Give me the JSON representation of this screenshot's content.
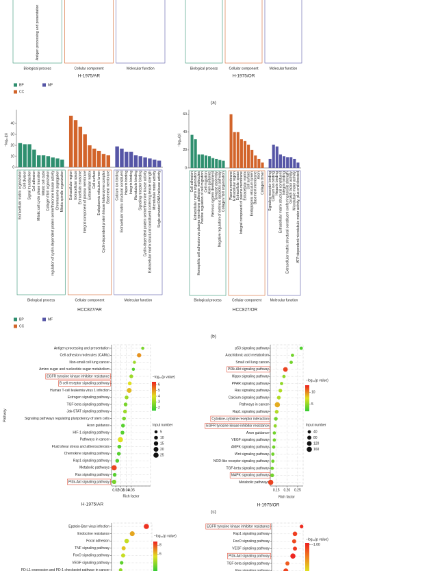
{
  "panel_labels": [
    "(a)",
    "(b)",
    "(c)"
  ],
  "chart_data": [
    {
      "type": "bar",
      "title": "H-1975/AR",
      "legend": "bottom-left",
      "groups": [
        {
          "name": "BP",
          "label": "Biological process",
          "color": "#2f8f6f",
          "categories": [
            "Antigen processing and presentation"
          ]
        },
        {
          "name": "CC",
          "label": "Cellular component",
          "color": "#d2642a",
          "categories": []
        },
        {
          "name": "MF",
          "label": "Molecular function",
          "color": "#5656a6",
          "categories": []
        }
      ]
    },
    {
      "type": "bar",
      "title": "H-1975/OR",
      "groups": [
        {
          "label": "Biological process",
          "color": "#2f8f6f",
          "categories": []
        },
        {
          "label": "Cellular component",
          "color": "#d2642a",
          "categories": []
        },
        {
          "label": "Molecular function",
          "color": "#5656a6",
          "categories": []
        }
      ]
    },
    {
      "type": "bar",
      "title": "HCC827/AR",
      "ylabel": "−log₁₀(p)",
      "legend": "bottom-left",
      "ylim": [
        0,
        50
      ],
      "yticks": [
        0,
        10,
        20,
        30,
        40
      ],
      "groups": [
        {
          "name": "BP",
          "label": "Biological process",
          "color": "#2f8f6f",
          "categories": [
            "Extracellular matrix organization",
            "Cell division",
            "Signal transduction",
            "Cell adhesion",
            "Mitotic cell cycle phase transition",
            "Mitotic cell cycle",
            "Collagen fibril organization",
            "regulation of cyclin-dependent protein serine/threonine kinase activity",
            "Chromosome segregation",
            "Mitotic spindle organization"
          ],
          "values": [
            22,
            21,
            21,
            16,
            11,
            11,
            10,
            9,
            8,
            7
          ]
        },
        {
          "name": "CC",
          "label": "Cellular component",
          "color": "#d2642a",
          "categories": [
            "Extracellular region",
            "Extracellular space",
            "Extracellular exosome",
            "Integral component of plasma membrane",
            "Extracellular matrix",
            "Cell surface",
            "Endoplasmic reticulum lumen",
            "Cyclin-dependent protein kinase holoenzyme complex",
            "Basement membrane"
          ],
          "values": [
            47,
            43,
            37,
            30,
            20,
            17,
            15,
            12,
            11
          ]
        },
        {
          "name": "MF",
          "label": "Molecular function",
          "color": "#5656a6",
          "categories": [
            "Calcium ion binding",
            "Extracellular matrix structural constituent",
            "Heparin binding",
            "Integrin binding",
            "Microtubule binding",
            "Signaling receptor binding",
            "Cyclin-dependent protein serine/threonine kinase activity",
            "Extracellular matrix structural constituent conferring tensile strength",
            "Microtubule motor activity",
            "Single-stranded DNA helicase activity"
          ],
          "values": [
            19,
            17,
            14,
            14,
            11,
            10,
            9,
            8,
            7,
            6
          ]
        }
      ]
    },
    {
      "type": "bar",
      "title": "HCC827/OR",
      "ylabel": "−log₁₀(p)",
      "ylim": [
        0,
        62
      ],
      "yticks": [
        0,
        20,
        40,
        60
      ],
      "groups": [
        {
          "label": "Biological process",
          "color": "#2f8f6f",
          "categories": [
            "Cell adhesion",
            "Extracellular matrix organization",
            "Homophilic cell adhesion via plasma membrane adhesion molecules",
            "Positive regulation of cell migration",
            "Cell migration",
            "Axon guidance",
            "Nervous system development",
            "Synapse assembly",
            "Negative regulation of extrinsic apoptotic pathway",
            "Collagen fibril organization"
          ],
          "values": [
            37,
            32,
            15,
            15,
            14,
            13,
            11,
            10,
            9,
            8
          ]
        },
        {
          "label": "Cellular component",
          "color": "#d2642a",
          "categories": [
            "Plasma membrane",
            "Extracellular region",
            "Extracellular space",
            "Integral component of plasma membrane",
            "Extracellular matrix",
            "Cell surface",
            "Endoplasmic reticulum lumen",
            "Basement membrane",
            "Axon",
            "Collagen trimer"
          ],
          "values": [
            60,
            40,
            40,
            32,
            30,
            26,
            20,
            14,
            10,
            6
          ]
        },
        {
          "label": "Molecular function",
          "color": "#5656a6",
          "categories": [
            "Signaling receptor binding",
            "Calcium ion binding",
            "Heparin binding",
            "Extracellular matrix structural constituent",
            "Integrin binding",
            "Extracellular matrix structural constituent conferring tensile strength",
            "Growth factor activity",
            "Microtubule motor activity",
            "ATP-dependent microtubule motor activity, plus-end-directed"
          ],
          "values": [
            10,
            26,
            24,
            15,
            13,
            12,
            12,
            10,
            6
          ]
        }
      ]
    },
    {
      "type": "scatter",
      "title": "H-1975/AR",
      "xlabel": "Rich factor",
      "ylabel": "Pathway",
      "categories": [
        "Antigen processing and presentation",
        "Cell adhesion molecules (CAMs)",
        "Non-small cell lung cancer",
        "Amino sugar and nucleotide sugar metabolism",
        "EGFR tyrosine kinase inhibitor resistance",
        "B cell receptor signaling pathway",
        "Human T-cell leukemia virus 1 infection",
        "Estrogen signaling pathway",
        "TGF-beta signaling pathway",
        "Jak-STAT signaling pathway",
        "Signaling pathways regulating pluripotency of stem cells",
        "Axon guidance",
        "HIF-1 signaling pathway",
        "Pathways in cancer",
        "Fluid shear stress and atherosclerosis",
        "Chemokine signaling pathway",
        "Rap1 signaling pathway",
        "Metabolic pathways",
        "Ras signaling pathway",
        "PI3k-Akt signaling pathway"
      ],
      "x": [
        0.072,
        0.065,
        0.056,
        0.054,
        0.05,
        0.047,
        0.046,
        0.041,
        0.039,
        0.038,
        0.036,
        0.034,
        0.033,
        0.029,
        0.027,
        0.026,
        0.023,
        0.017,
        0.018,
        0.017
      ],
      "color_values": [
        2.5,
        5,
        3,
        2,
        3,
        4,
        4.5,
        3,
        2.5,
        3,
        2.5,
        2,
        2,
        4,
        2,
        2,
        2,
        6,
        2,
        2.5
      ],
      "sizes": [
        5,
        15,
        5,
        5,
        10,
        10,
        20,
        10,
        10,
        10,
        10,
        10,
        10,
        25,
        10,
        10,
        10,
        25,
        10,
        15
      ],
      "xlim": [
        0.012,
        0.087
      ],
      "xticks": [
        0.02,
        0.03,
        0.04,
        0.05
      ],
      "highlight": [
        4,
        5,
        19
      ],
      "colorbar": {
        "title": "−log₁₀(p value)",
        "lim": [
          1.5,
          6.5
        ],
        "ticks": [
          2,
          3,
          4,
          5,
          6
        ],
        "colors": [
          "#33cc33",
          "#e0e020",
          "#ee2020"
        ]
      },
      "size_legend": {
        "title": "Input number",
        "values": [
          5,
          10,
          15,
          20,
          25
        ]
      }
    },
    {
      "type": "scatter",
      "title": "H-1975/OR",
      "xlabel": "Rich factor",
      "categories": [
        "p53 signaling pathway",
        "Arachidonic acid metabolism",
        "Small cell lung cancer",
        "PI3k-Akt signaling pathway",
        "Hippo signaling pathway",
        "PPAR signaling pathway",
        "Ras signaling pathway",
        "Calcium signaling pathway",
        "Pathways in cancer",
        "Rap1 signaling pathway",
        "Cytokine-cytokine receptor interaction",
        "EGFR tyrosine kinase inhibitor resistance",
        "Axon guidance",
        "VEGF signaling pathway",
        "AMPK signaling pathway",
        "Wnt signaling pathway",
        "NOD-like receptor signaling pathway",
        "TGF-beta signaling pathway",
        "MAPK signaling pathway",
        "Metabolic pathways"
      ],
      "x": [
        0.267,
        0.226,
        0.22,
        0.193,
        0.186,
        0.175,
        0.169,
        0.162,
        0.155,
        0.152,
        0.148,
        0.145,
        0.141,
        0.141,
        0.138,
        0.134,
        0.134,
        0.131,
        0.131,
        0.124
      ],
      "color_values": [
        3,
        4,
        4,
        12,
        5,
        5,
        6,
        6,
        9,
        6,
        4,
        5,
        4,
        4,
        4,
        4,
        4,
        4,
        4,
        12
      ],
      "sizes": [
        40,
        40,
        40,
        120,
        40,
        40,
        60,
        60,
        160,
        60,
        60,
        40,
        40,
        40,
        40,
        40,
        40,
        40,
        60,
        160
      ],
      "xlim": [
        0.122,
        0.276
      ],
      "xticks": [
        0.15,
        {
          "value": 0.2,
          "label": "0.20"
        },
        0.25
      ],
      "highlight": [
        3,
        10,
        11,
        18
      ],
      "colorbar": {
        "title": "−log₁₀(p value)",
        "lim": [
          2,
          13
        ],
        "ticks": [
          5,
          10
        ],
        "colors": [
          "#33cc33",
          "#e0e020",
          "#ee2020"
        ]
      },
      "size_legend": {
        "title": "Input number",
        "values": [
          40,
          80,
          120,
          160
        ]
      }
    },
    {
      "type": "scatter",
      "categories": [
        "Epstein-Barr virus infection",
        "Endocrine resistance",
        "Focal adhesion",
        "TNF signaling pathway",
        "FoxO signaling pathway",
        "VEGF signaling pathway",
        "PD-L1 expression and PD-1 checkpoint pathway in cancer"
      ],
      "x": [
        0.089,
        0.061,
        0.05,
        0.044,
        0.043,
        0.04,
        0.038
      ],
      "color_values": [
        8.5,
        6.5,
        5,
        6,
        5,
        3,
        4
      ],
      "sizes": [
        30,
        25,
        20,
        15,
        15,
        10,
        10
      ],
      "xlim": [
        0.02,
        0.1
      ],
      "colorbar": {
        "title": "−log₁₀(p value)",
        "lim": [
          2.2,
          8.8
        ],
        "ticks": [
          8,
          6
        ],
        "colors": [
          "#33cc33",
          "#e0e020",
          "#ee2020"
        ]
      }
    },
    {
      "type": "scatter",
      "categories": [
        "EGFR tyrosine kinase inhibitor resistance",
        "Rap1 signaling pathway",
        "FoxO signaling pathway",
        "VEGF signaling pathway",
        "PI3k-Akt signaling pathway",
        "TGF-beta signaling pathway",
        "Ras signaling pathway"
      ],
      "x": [
        0.29,
        0.248,
        0.243,
        0.248,
        0.235,
        0.2,
        0.19
      ],
      "color_values": [
        -1,
        -1.3,
        -1.5,
        -1.2,
        -0.9,
        -1.8,
        -1.4
      ],
      "sizes": [
        20,
        40,
        30,
        30,
        60,
        30,
        50
      ],
      "xlim": [
        0.1,
        0.3
      ],
      "highlight": [
        0,
        4
      ],
      "colorbar": {
        "title": "−log₁₀(p value)",
        "lim": [
          -4,
          -0.8
        ],
        "ticks": [
          {
            "value": -1,
            "label": "−1.00"
          }
        ],
        "colors": [
          "#e0e020",
          "#f08020",
          "#ee2020"
        ]
      }
    }
  ]
}
